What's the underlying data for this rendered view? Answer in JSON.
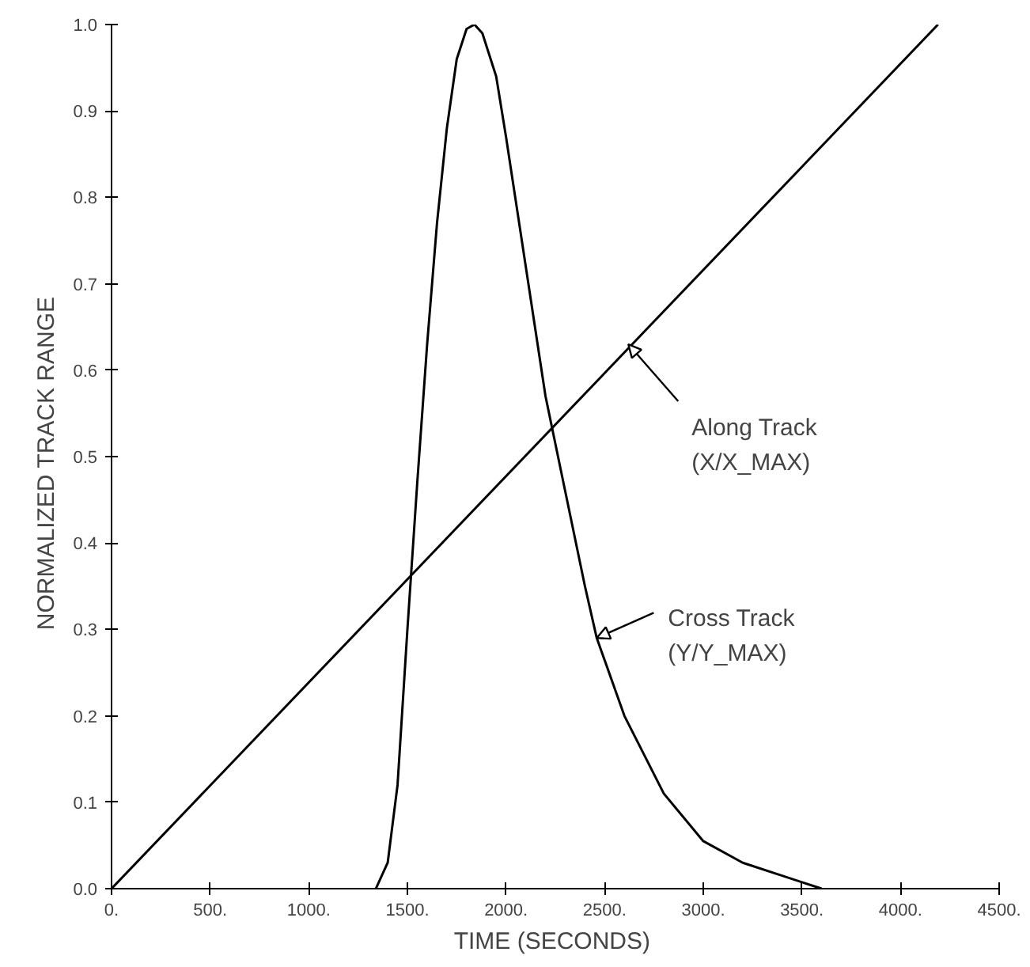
{
  "chart_data": {
    "type": "line",
    "xlabel": "TIME  (SECONDS)",
    "ylabel": "NORMALIZED  TRACK  RANGE",
    "xlim": [
      0,
      4500
    ],
    "ylim": [
      0,
      1.0
    ],
    "xticks": [
      {
        "value": 0,
        "label": "0."
      },
      {
        "value": 500,
        "label": "500."
      },
      {
        "value": 1000,
        "label": "1000."
      },
      {
        "value": 1500,
        "label": "1500."
      },
      {
        "value": 2000,
        "label": "2000."
      },
      {
        "value": 2500,
        "label": "2500."
      },
      {
        "value": 3000,
        "label": "3000."
      },
      {
        "value": 3500,
        "label": "3500."
      },
      {
        "value": 4000,
        "label": "4000."
      },
      {
        "value": 4500,
        "label": "4500."
      }
    ],
    "yticks": [
      {
        "value": 0,
        "label": "0.0"
      },
      0.1,
      0.2,
      0.3,
      0.4,
      0.5,
      0.6,
      0.7,
      0.8,
      0.9,
      {
        "value": 1,
        "label": "1.0"
      }
    ],
    "grid": false,
    "line_style": "solid",
    "series": [
      {
        "color": "#000000",
        "x": [
          0,
          4190
        ],
        "values": [
          0,
          1.0
        ]
      },
      {
        "color": "#000000",
        "x": [
          1340,
          1400,
          1450,
          1500,
          1550,
          1600,
          1650,
          1700,
          1750,
          1800,
          1840,
          1880,
          1950,
          2000,
          2100,
          2200,
          2300,
          2400,
          2460,
          2600,
          2800,
          3000,
          3200,
          3400,
          3600
        ],
        "values": [
          0,
          0.03,
          0.12,
          0.3,
          0.47,
          0.63,
          0.77,
          0.88,
          0.96,
          0.995,
          1.0,
          0.99,
          0.94,
          0.87,
          0.72,
          0.57,
          0.46,
          0.35,
          0.29,
          0.2,
          0.11,
          0.055,
          0.03,
          0.015,
          0
        ]
      }
    ],
    "annotations": [
      {
        "text": "Along Track\n(X/X_MAX)",
        "x": 2620,
        "y": 0.63
      },
      {
        "text": "Cross Track\n(Y/Y_MAX)",
        "x": 2460,
        "y": 0.29
      }
    ]
  }
}
